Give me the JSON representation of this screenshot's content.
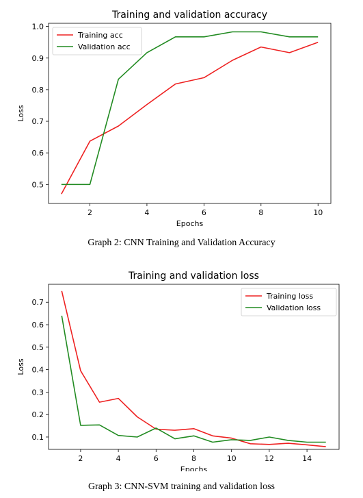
{
  "chart_data": [
    {
      "type": "line",
      "title": "Training and validation accuracy",
      "xlabel": "Epochs",
      "ylabel": "Loss",
      "xlim": [
        0.55,
        10.45
      ],
      "ylim": [
        0.44,
        1.01
      ],
      "xticks": [
        2,
        4,
        6,
        8,
        10
      ],
      "yticks": [
        0.5,
        0.6,
        0.7,
        0.8,
        0.9,
        1.0
      ],
      "ytick_labels": [
        "0.5",
        "0.6",
        "0.7",
        "0.8",
        "0.9",
        "1.0"
      ],
      "legend_position": "top-left",
      "grid": false,
      "x": [
        1,
        2,
        3,
        4,
        5,
        6,
        7,
        8,
        9,
        10
      ],
      "series": [
        {
          "name": "Training acc",
          "color": "#ee2222",
          "values": [
            0.47,
            0.637,
            0.685,
            0.753,
            0.818,
            0.838,
            0.893,
            0.935,
            0.917,
            0.95
          ]
        },
        {
          "name": "Validation acc",
          "color": "#228b22",
          "values": [
            0.5,
            0.5,
            0.833,
            0.917,
            0.967,
            0.967,
            0.983,
            0.983,
            0.967,
            0.967
          ]
        }
      ],
      "caption": "Graph 2: CNN Training and Validation Accuracy"
    },
    {
      "type": "line",
      "title": "Training and validation loss",
      "xlabel": "Epochs",
      "ylabel": "Loss",
      "xlim": [
        0.3,
        15.7
      ],
      "ylim": [
        0.045,
        0.78
      ],
      "xticks": [
        2,
        4,
        6,
        8,
        10,
        12,
        14
      ],
      "yticks": [
        0.1,
        0.2,
        0.3,
        0.4,
        0.5,
        0.6,
        0.7
      ],
      "ytick_labels": [
        "0.1",
        "0.2",
        "0.3",
        "0.4",
        "0.5",
        "0.6",
        "0.7"
      ],
      "legend_position": "top-right",
      "grid": false,
      "x": [
        1,
        2,
        3,
        4,
        5,
        6,
        7,
        8,
        9,
        10,
        11,
        12,
        13,
        14,
        15
      ],
      "series": [
        {
          "name": "Training loss",
          "color": "#ee2222",
          "values": [
            0.75,
            0.395,
            0.255,
            0.272,
            0.19,
            0.135,
            0.13,
            0.137,
            0.105,
            0.095,
            0.07,
            0.067,
            0.072,
            0.065,
            0.057
          ]
        },
        {
          "name": "Validation loss",
          "color": "#228b22",
          "values": [
            0.64,
            0.152,
            0.154,
            0.107,
            0.1,
            0.14,
            0.092,
            0.105,
            0.077,
            0.088,
            0.085,
            0.1,
            0.085,
            0.077,
            0.077
          ]
        }
      ],
      "caption": "Graph 3: CNN-SVM training and validation loss"
    }
  ]
}
